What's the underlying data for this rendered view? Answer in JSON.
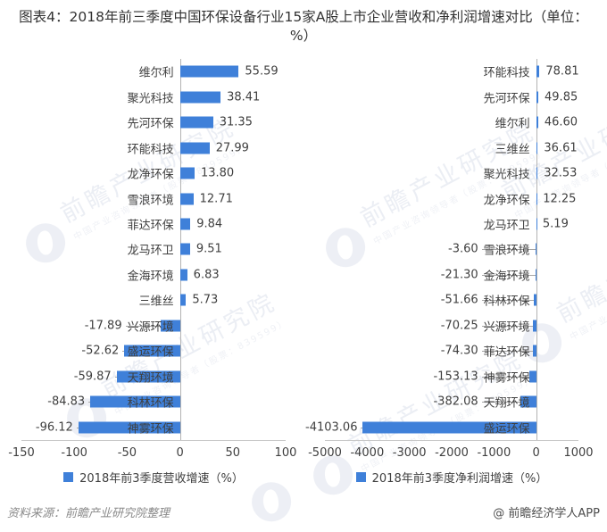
{
  "header": {
    "title": "图表4：2018年前三季度中国环保设备行业15家A股上市企业营收和净利润增速对比（单位：%）"
  },
  "footer": {
    "source": "资料来源：前瞻产业研究院整理",
    "credit": "@ 前瞻经济学人APP"
  },
  "watermark": {
    "brand": "前瞻产业研究院",
    "subtext": "中国产业咨询领导者（股票：839599）"
  },
  "colors": {
    "bar": "#3f80d9",
    "axis_line": "#b3b3b3",
    "baseline": "#c9c9c9",
    "label_text": "#3f3f3f",
    "leader_line": "#a6a6a6"
  },
  "chart_data": [
    {
      "type": "bar",
      "orientation": "horizontal",
      "legend": "2018年前3季度营收增速（%）",
      "legend_position": "bottom",
      "grid": false,
      "xlim": [
        -150,
        100
      ],
      "ticks": [
        "-150",
        "-100",
        "-50",
        "0",
        "50",
        "100"
      ],
      "categories": [
        "维尔利",
        "聚光科技",
        "先河环保",
        "环能科技",
        "龙净环保",
        "雪浪环境",
        "菲达环保",
        "龙马环卫",
        "金海环境",
        "三维丝",
        "兴源环境",
        "盛运环保",
        "天翔环境",
        "科林环保",
        "神雾环保"
      ],
      "values": [
        55.59,
        38.41,
        31.35,
        27.99,
        13.8,
        12.71,
        9.84,
        9.51,
        6.83,
        5.73,
        -17.89,
        -52.62,
        -59.87,
        -84.83,
        -96.12
      ],
      "labels": [
        "55.59",
        "38.41",
        "31.35",
        "27.99",
        "13.80",
        "12.71",
        "9.84",
        "9.51",
        "6.83",
        "5.73",
        "-17.89",
        "-52.62",
        "-59.87",
        "-84.83",
        "-96.12"
      ]
    },
    {
      "type": "bar",
      "orientation": "horizontal",
      "legend": "2018年前3季度净利润增速（%）",
      "legend_position": "bottom",
      "grid": false,
      "xlim": [
        -5000,
        1000
      ],
      "ticks": [
        "-5000",
        "-4000",
        "-3000",
        "-2000",
        "-1000",
        "0",
        "1000"
      ],
      "categories": [
        "环能科技",
        "先河环保",
        "维尔利",
        "三维丝",
        "聚光科技",
        "龙净环保",
        "龙马环卫",
        "雪浪环境",
        "金海环境",
        "科林环保",
        "兴源环境",
        "菲达环保",
        "神雾环保",
        "天翔环境",
        "盛运环保"
      ],
      "values": [
        78.81,
        49.85,
        46.6,
        36.61,
        32.53,
        12.25,
        5.19,
        -3.6,
        -21.3,
        -51.66,
        -70.25,
        -74.3,
        -153.13,
        -382.08,
        -4103.06
      ],
      "labels": [
        "78.81",
        "49.85",
        "46.60",
        "36.61",
        "32.53",
        "12.25",
        "5.19",
        "-3.60",
        "-21.30",
        "-51.66",
        "-70.25",
        "-74.30",
        "-153.13",
        "-382.08",
        "-4103.06"
      ]
    }
  ]
}
